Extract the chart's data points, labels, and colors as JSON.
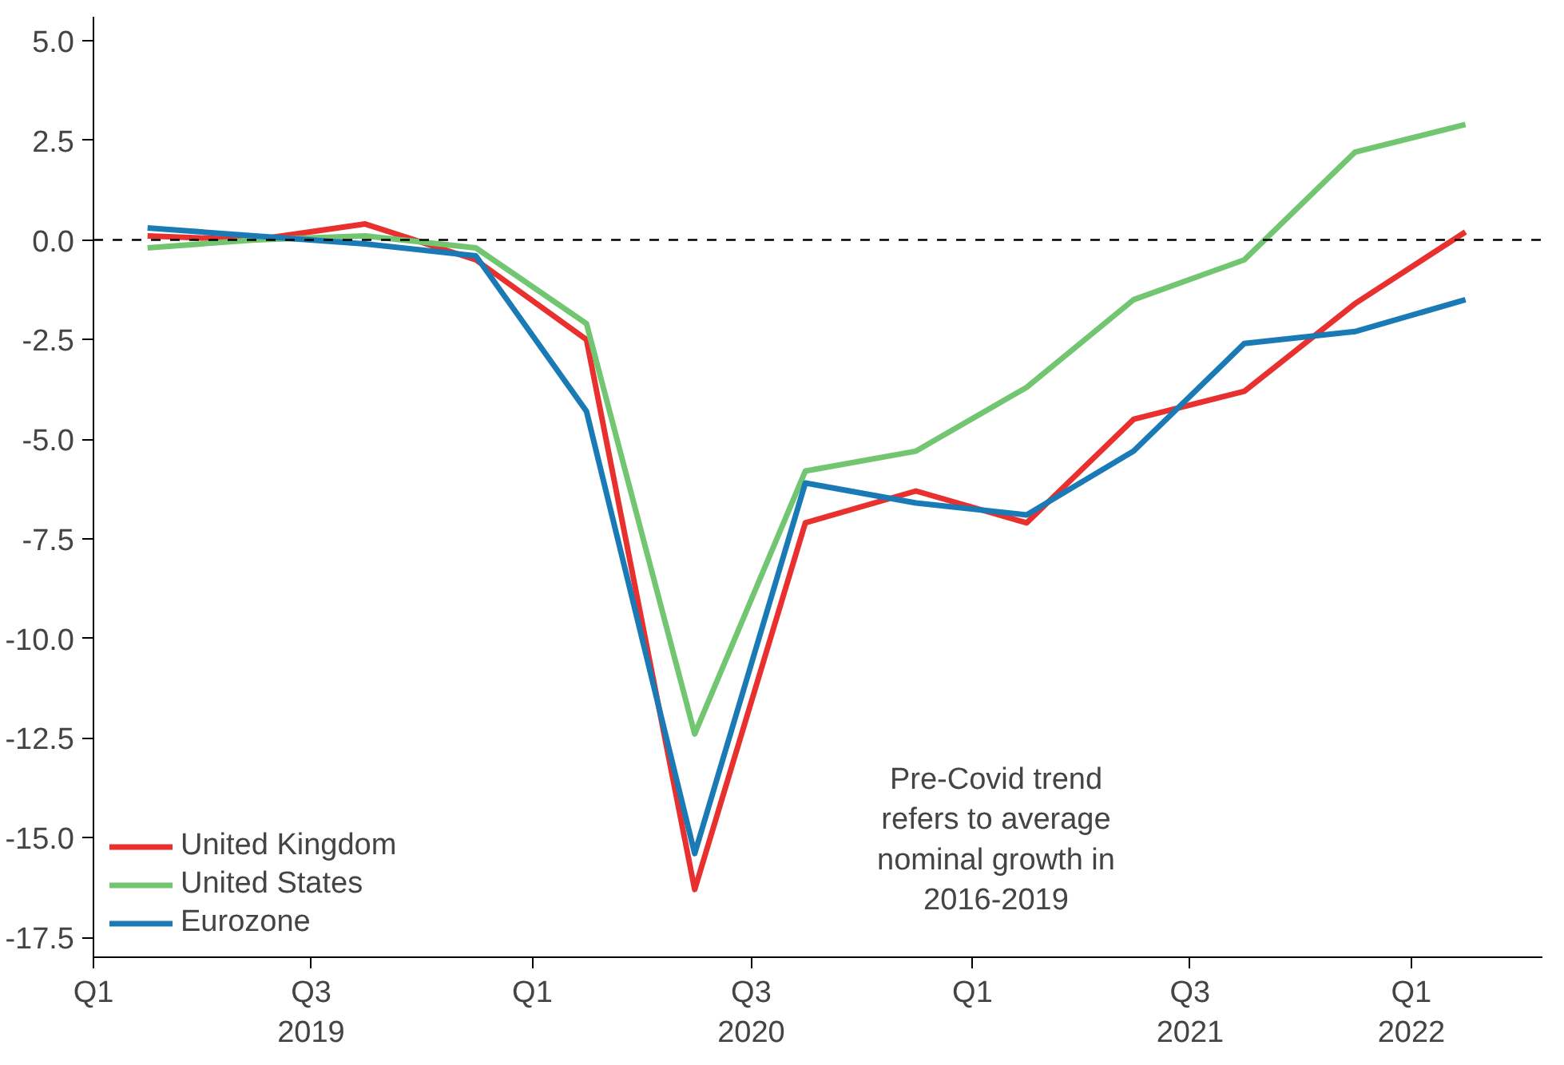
{
  "chart_data": {
    "type": "line",
    "x": [
      "2019-02-15",
      "2019-05-15",
      "2019-08-15",
      "2019-11-15",
      "2020-02-15",
      "2020-05-15",
      "2020-08-15",
      "2020-11-15",
      "2021-02-15",
      "2021-05-15",
      "2021-08-15",
      "2021-11-15",
      "2022-02-15"
    ],
    "series": [
      {
        "name": "United Kingdom",
        "color": "#e8312f",
        "values": [
          0.1,
          0.0,
          0.4,
          -0.5,
          -2.5,
          -16.3,
          -7.1,
          -6.3,
          -7.1,
          -4.5,
          -3.8,
          -1.6,
          0.2
        ]
      },
      {
        "name": "United States",
        "color": "#72c672",
        "values": [
          -0.2,
          0.0,
          0.1,
          -0.2,
          -2.1,
          -12.4,
          -5.8,
          -5.3,
          -3.7,
          -1.5,
          -0.5,
          2.2,
          2.9
        ]
      },
      {
        "name": "Eurozone",
        "color": "#1a7ab5",
        "values": [
          0.3,
          0.1,
          -0.1,
          -0.4,
          -4.3,
          -15.4,
          -6.1,
          -6.6,
          -6.9,
          -5.3,
          -2.6,
          -2.3,
          -1.5
        ]
      }
    ],
    "xlim": [
      "2019-01-01",
      "2022-04-20"
    ],
    "xticks": [
      {
        "value": "2019-01-01",
        "label": "Q1"
      },
      {
        "value": "2019-07-01",
        "label": "Q3\n2019"
      },
      {
        "value": "2020-01-01",
        "label": "Q1"
      },
      {
        "value": "2020-07-01",
        "label": "Q3\n2020"
      },
      {
        "value": "2021-01-01",
        "label": "Q1"
      },
      {
        "value": "2021-07-01",
        "label": "Q3\n2021"
      },
      {
        "value": "2022-01-01",
        "label": "Q1\n2022"
      }
    ],
    "ylim": [
      -18.0,
      5.6
    ],
    "yticks": [
      {
        "value": -17.5,
        "label": "-17.5"
      },
      {
        "value": -15,
        "label": "-15.0"
      },
      {
        "value": -12.5,
        "label": "-12.5"
      },
      {
        "value": -10,
        "label": "-10.0"
      },
      {
        "value": -7.5,
        "label": "-7.5"
      },
      {
        "value": -5,
        "label": "-5.0"
      },
      {
        "value": -2.5,
        "label": "-2.5"
      },
      {
        "value": 0,
        "label": "0.0"
      },
      {
        "value": 2.5,
        "label": "2.5"
      },
      {
        "value": 5,
        "label": "5.0"
      }
    ],
    "ref_lines": [
      {
        "axis": "y",
        "value": 0,
        "color": "#000000",
        "line_style": "dashed"
      }
    ],
    "annotations": [
      "Pre-Covid trend\nrefers to average\nnominal growth in\n2016-2019"
    ],
    "legend": "bottom left",
    "grid": false,
    "marker": "none",
    "line_style": "solid"
  }
}
